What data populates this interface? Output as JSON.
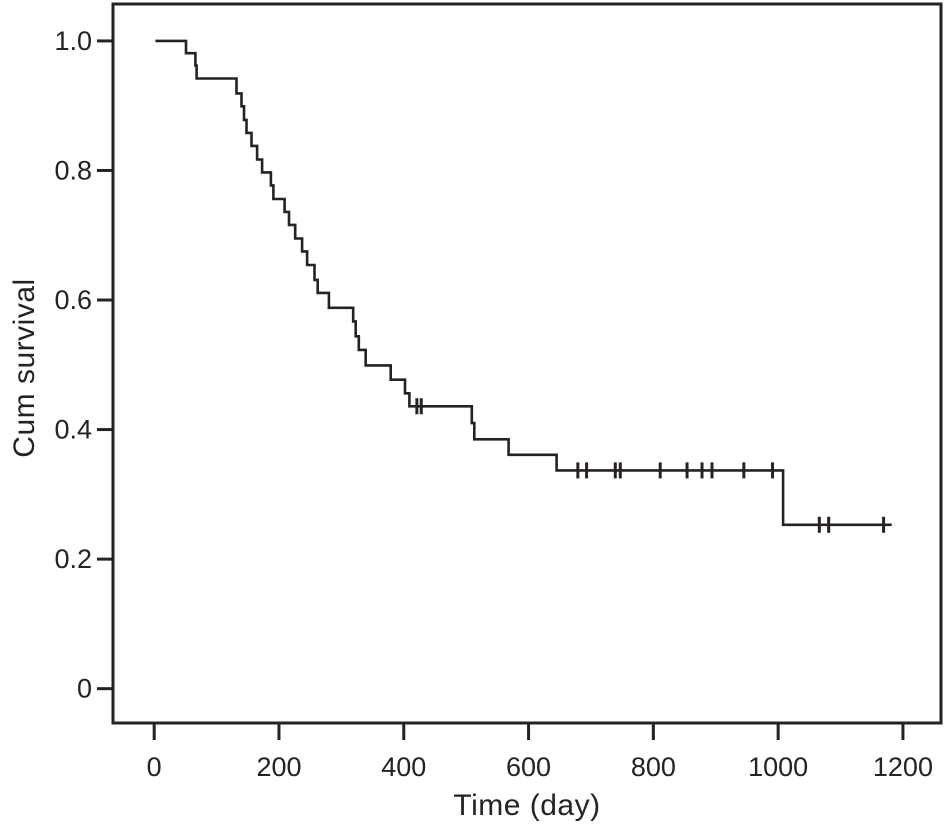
{
  "figure": {
    "background_color": "#ffffff",
    "line_color": "#262122",
    "text_color": "#262122"
  },
  "chart_data": {
    "type": "line",
    "subtype": "kaplan-meier-step-curve",
    "title": "",
    "xlabel": "Time (day)",
    "ylabel": "Cum survival",
    "grid": false,
    "legend": "none",
    "xlim": [
      -66,
      1261
    ],
    "ylim": [
      -0.053,
      1.057
    ],
    "x_ticks": [
      {
        "label": "0",
        "value": 0
      },
      {
        "label": "200",
        "value": 200
      },
      {
        "label": "400",
        "value": 400
      },
      {
        "label": "600",
        "value": 600
      },
      {
        "label": "800",
        "value": 800
      },
      {
        "label": "1000",
        "value": 1000
      },
      {
        "label": "1200",
        "value": 1200
      }
    ],
    "y_ticks": [
      {
        "label": "1.0",
        "value": 1.0
      },
      {
        "label": "0.8",
        "value": 0.8
      },
      {
        "label": "0.6",
        "value": 0.6
      },
      {
        "label": "0.4",
        "value": 0.4
      },
      {
        "label": "0.2",
        "value": 0.2
      },
      {
        "label": "0",
        "value": 0
      }
    ],
    "series": [
      {
        "name": "Cum survival",
        "start": [
          2,
          1.0
        ],
        "end_day": 1182,
        "steps": [
          [
            51,
            0.981
          ],
          [
            66,
            0.962
          ],
          [
            68,
            0.942
          ],
          [
            132,
            0.919
          ],
          [
            140,
            0.899
          ],
          [
            144,
            0.878
          ],
          [
            148,
            0.858
          ],
          [
            156,
            0.838
          ],
          [
            165,
            0.817
          ],
          [
            173,
            0.797
          ],
          [
            187,
            0.777
          ],
          [
            191,
            0.756
          ],
          [
            209,
            0.736
          ],
          [
            216,
            0.716
          ],
          [
            226,
            0.695
          ],
          [
            237,
            0.675
          ],
          [
            245,
            0.654
          ],
          [
            257,
            0.631
          ],
          [
            262,
            0.611
          ],
          [
            280,
            0.588
          ],
          [
            319,
            0.567
          ],
          [
            323,
            0.544
          ],
          [
            328,
            0.523
          ],
          [
            339,
            0.499
          ],
          [
            379,
            0.477
          ],
          [
            402,
            0.456
          ],
          [
            409,
            0.436
          ],
          [
            509,
            0.41
          ],
          [
            513,
            0.385
          ],
          [
            568,
            0.361
          ],
          [
            645,
            0.337
          ],
          [
            1008,
            0.253
          ]
        ],
        "censor_marks": [
          [
            421,
            0.436
          ],
          [
            428,
            0.436
          ],
          [
            679,
            0.337
          ],
          [
            693,
            0.337
          ],
          [
            739,
            0.337
          ],
          [
            747,
            0.337
          ],
          [
            811,
            0.337
          ],
          [
            854,
            0.337
          ],
          [
            878,
            0.337
          ],
          [
            894,
            0.337
          ],
          [
            945,
            0.337
          ],
          [
            991,
            0.337
          ],
          [
            1066,
            0.253
          ],
          [
            1081,
            0.253
          ],
          [
            1169,
            0.253
          ]
        ]
      }
    ]
  }
}
